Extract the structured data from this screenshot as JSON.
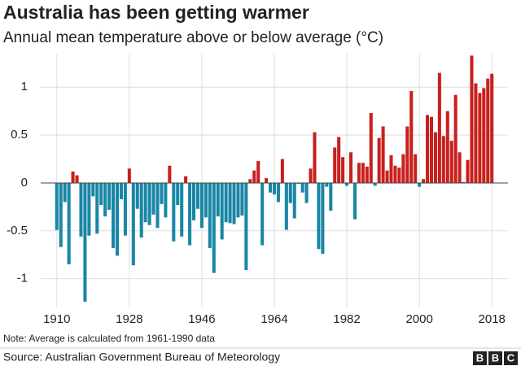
{
  "chart_data": {
    "type": "bar",
    "title": "Australia has been getting warmer",
    "subtitle": "Annual mean temperature above or below average (°C)",
    "note": "Note: Average is calculated from 1961-1990 data",
    "source": "Source: Australian Government Bureau of Meteorology",
    "logo": [
      "B",
      "B",
      "C"
    ],
    "x": [
      1910,
      1911,
      1912,
      1913,
      1914,
      1915,
      1916,
      1917,
      1918,
      1919,
      1920,
      1921,
      1922,
      1923,
      1924,
      1925,
      1926,
      1927,
      1928,
      1929,
      1930,
      1931,
      1932,
      1933,
      1934,
      1935,
      1936,
      1937,
      1938,
      1939,
      1940,
      1941,
      1942,
      1943,
      1944,
      1945,
      1946,
      1947,
      1948,
      1949,
      1950,
      1951,
      1952,
      1953,
      1954,
      1955,
      1956,
      1957,
      1958,
      1959,
      1960,
      1961,
      1962,
      1963,
      1964,
      1965,
      1966,
      1967,
      1968,
      1969,
      1970,
      1971,
      1972,
      1973,
      1974,
      1975,
      1976,
      1977,
      1978,
      1979,
      1980,
      1981,
      1982,
      1983,
      1984,
      1985,
      1986,
      1987,
      1988,
      1989,
      1990,
      1991,
      1992,
      1993,
      1994,
      1995,
      1996,
      1997,
      1998,
      1999,
      2000,
      2001,
      2002,
      2003,
      2004,
      2005,
      2006,
      2007,
      2008,
      2009,
      2010,
      2011,
      2012,
      2013,
      2014,
      2015,
      2016,
      2017,
      2018
    ],
    "values": [
      -0.49,
      -0.67,
      -0.2,
      -0.85,
      0.12,
      0.08,
      -0.56,
      -1.24,
      -0.55,
      -0.14,
      -0.53,
      -0.23,
      -0.35,
      -0.28,
      -0.68,
      -0.76,
      -0.17,
      -0.55,
      0.15,
      -0.86,
      -0.27,
      -0.57,
      -0.41,
      -0.44,
      -0.33,
      -0.47,
      -0.22,
      -0.36,
      0.18,
      -0.61,
      -0.23,
      -0.56,
      0.07,
      -0.65,
      -0.39,
      -0.27,
      -0.47,
      -0.36,
      -0.68,
      -0.94,
      -0.35,
      -0.59,
      -0.41,
      -0.42,
      -0.43,
      -0.36,
      -0.34,
      -0.91,
      0.04,
      0.13,
      0.23,
      -0.65,
      0.05,
      -0.1,
      -0.12,
      -0.2,
      0.25,
      -0.49,
      -0.21,
      -0.37,
      -0.01,
      -0.1,
      -0.21,
      0.15,
      0.53,
      -0.69,
      -0.74,
      -0.04,
      -0.29,
      0.37,
      0.48,
      0.27,
      -0.03,
      0.32,
      -0.38,
      0.21,
      0.21,
      0.17,
      0.73,
      -0.03,
      0.47,
      0.59,
      0.13,
      0.29,
      0.18,
      0.16,
      0.3,
      0.59,
      0.96,
      0.3,
      -0.04,
      0.04,
      0.71,
      0.69,
      0.53,
      1.15,
      0.49,
      0.75,
      0.44,
      0.92,
      0.32,
      0.01,
      0.24,
      1.33,
      1.04,
      0.94,
      0.99,
      1.09,
      1.14
    ],
    "positive_color": "#c8201e",
    "negative_color": "#1a86a5",
    "xlim": [
      1906,
      2022
    ],
    "xticks": [
      1910,
      1928,
      1946,
      1964,
      1982,
      2000,
      2018
    ],
    "ylim": [
      -1.3,
      1.35
    ],
    "yticks": [
      -1,
      -0.5,
      0,
      0.5,
      1
    ],
    "grid": true
  }
}
